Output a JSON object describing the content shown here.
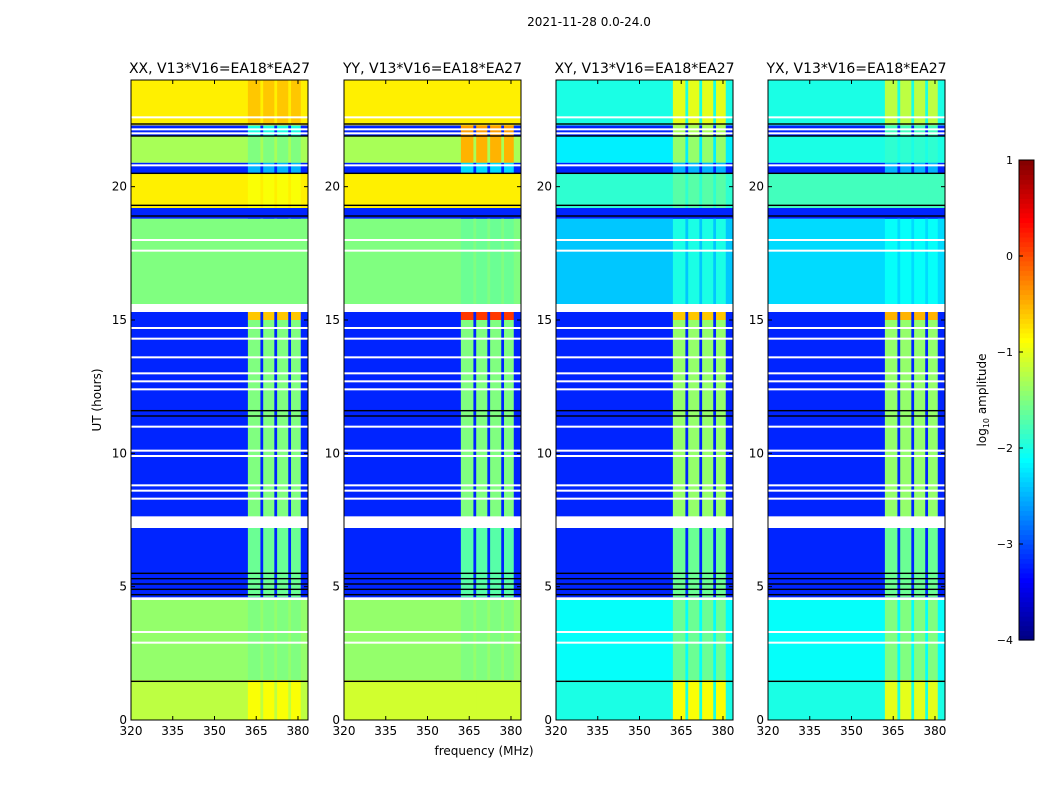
{
  "chart_data": {
    "type": "heatmap",
    "suptitle": "2021-11-28 0.0-24.0",
    "xlabel": "frequency (MHz)",
    "ylabel": "UT (hours)",
    "xlim": [
      320,
      383.6
    ],
    "ylim": [
      0,
      24
    ],
    "xticks": [
      320,
      335,
      350,
      365,
      380
    ],
    "yticks": [
      0,
      5,
      10,
      15,
      20
    ],
    "colorbar": {
      "label_prefix": "log",
      "label_sub": "10",
      "label_suffix": " amplitude",
      "range": [
        -4,
        1
      ],
      "ticks": [
        "−4",
        "−3",
        "−2",
        "−1",
        "0",
        "1"
      ],
      "colormap": "jet"
    },
    "rfi_band_mhz": [
      [
        362,
        366.5
      ],
      [
        367.5,
        371.5
      ],
      [
        372.5,
        376.5
      ],
      [
        377.5,
        381
      ]
    ],
    "blank_lines_ut": [
      2.9,
      3.3,
      4.55,
      7.35,
      7.45,
      7.6,
      8.3,
      8.6,
      8.8,
      9.9,
      10.1,
      11.0,
      12.4,
      12.7,
      13.0,
      13.6,
      14.3,
      14.7,
      15.45,
      15.55,
      17.6,
      18.0,
      20.8,
      22.0,
      22.15,
      22.6
    ],
    "dark_lines_ut": [
      1.45,
      4.7,
      4.9,
      5.1,
      5.3,
      5.5,
      11.4,
      11.6,
      18.9,
      19.3,
      20.5,
      21.9,
      22.35
    ],
    "panels": [
      {
        "title": "XX, V13*V16=EA18*EA27",
        "bands": [
          [
            0,
            1.5,
            -1.2,
            -0.9
          ],
          [
            1.5,
            4.5,
            -1.4,
            -1.5
          ],
          [
            4.6,
            7.2,
            -3.2,
            -1.6
          ],
          [
            7.6,
            15.3,
            -3.2,
            -1.5
          ],
          [
            15.0,
            15.3,
            -3.2,
            -0.6
          ],
          [
            15.6,
            18.8,
            -1.5,
            -1.5
          ],
          [
            18.8,
            19.2,
            -3.2,
            -3.2
          ],
          [
            19.2,
            20.5,
            -0.8,
            -0.9
          ],
          [
            20.5,
            20.9,
            -3.2,
            -2.5
          ],
          [
            20.9,
            21.9,
            -1.3,
            -1.5
          ],
          [
            21.9,
            22.3,
            -3.2,
            -2.0
          ],
          [
            22.3,
            24,
            -0.8,
            -0.6
          ]
        ]
      },
      {
        "title": "YY, V13*V16=EA18*EA27",
        "bands": [
          [
            0,
            1.5,
            -1.1,
            -1.1
          ],
          [
            1.5,
            4.5,
            -1.4,
            -1.5
          ],
          [
            4.6,
            7.2,
            -3.2,
            -1.7
          ],
          [
            7.6,
            15.3,
            -3.2,
            -1.5
          ],
          [
            15.0,
            15.3,
            -3.2,
            0.1
          ],
          [
            15.6,
            18.8,
            -1.5,
            -1.6
          ],
          [
            18.8,
            19.2,
            -3.2,
            -3.2
          ],
          [
            19.2,
            20.5,
            -0.8,
            -0.8
          ],
          [
            20.5,
            20.9,
            -3.2,
            -2.3
          ],
          [
            20.9,
            21.9,
            -1.3,
            -0.5
          ],
          [
            21.9,
            22.3,
            -3.2,
            -0.4
          ],
          [
            22.3,
            24,
            -0.8,
            -0.8
          ]
        ]
      },
      {
        "title": "XY, V13*V16=EA18*EA27",
        "bands": [
          [
            0,
            1.5,
            -2.0,
            -0.9
          ],
          [
            1.5,
            4.5,
            -2.1,
            -1.6
          ],
          [
            4.6,
            7.2,
            -3.2,
            -1.6
          ],
          [
            7.6,
            15.3,
            -3.2,
            -1.4
          ],
          [
            15.0,
            15.3,
            -3.2,
            -0.6
          ],
          [
            15.6,
            18.8,
            -2.4,
            -2.0
          ],
          [
            18.8,
            19.2,
            -3.2,
            -3.2
          ],
          [
            19.2,
            20.5,
            -1.9,
            -1.7
          ],
          [
            20.5,
            20.9,
            -3.2,
            -2.5
          ],
          [
            20.9,
            21.9,
            -2.2,
            -1.4
          ],
          [
            21.9,
            22.3,
            -3.2,
            -1.3
          ],
          [
            22.3,
            24,
            -2.0,
            -1.0
          ]
        ]
      },
      {
        "title": "YX, V13*V16=EA18*EA27",
        "bands": [
          [
            0,
            1.5,
            -2.0,
            -1.0
          ],
          [
            1.5,
            4.5,
            -2.1,
            -1.5
          ],
          [
            4.6,
            7.2,
            -3.2,
            -1.6
          ],
          [
            7.6,
            15.3,
            -3.2,
            -1.4
          ],
          [
            15.0,
            15.3,
            -3.2,
            -0.5
          ],
          [
            15.6,
            18.8,
            -2.3,
            -2.1
          ],
          [
            18.8,
            19.2,
            -3.2,
            -3.2
          ],
          [
            19.2,
            20.5,
            -1.8,
            -1.8
          ],
          [
            20.5,
            20.9,
            -3.2,
            -2.5
          ],
          [
            20.9,
            21.9,
            -2.0,
            -1.9
          ],
          [
            21.9,
            22.3,
            -3.2,
            -1.8
          ],
          [
            22.3,
            24,
            -2.0,
            -1.2
          ]
        ]
      }
    ]
  }
}
